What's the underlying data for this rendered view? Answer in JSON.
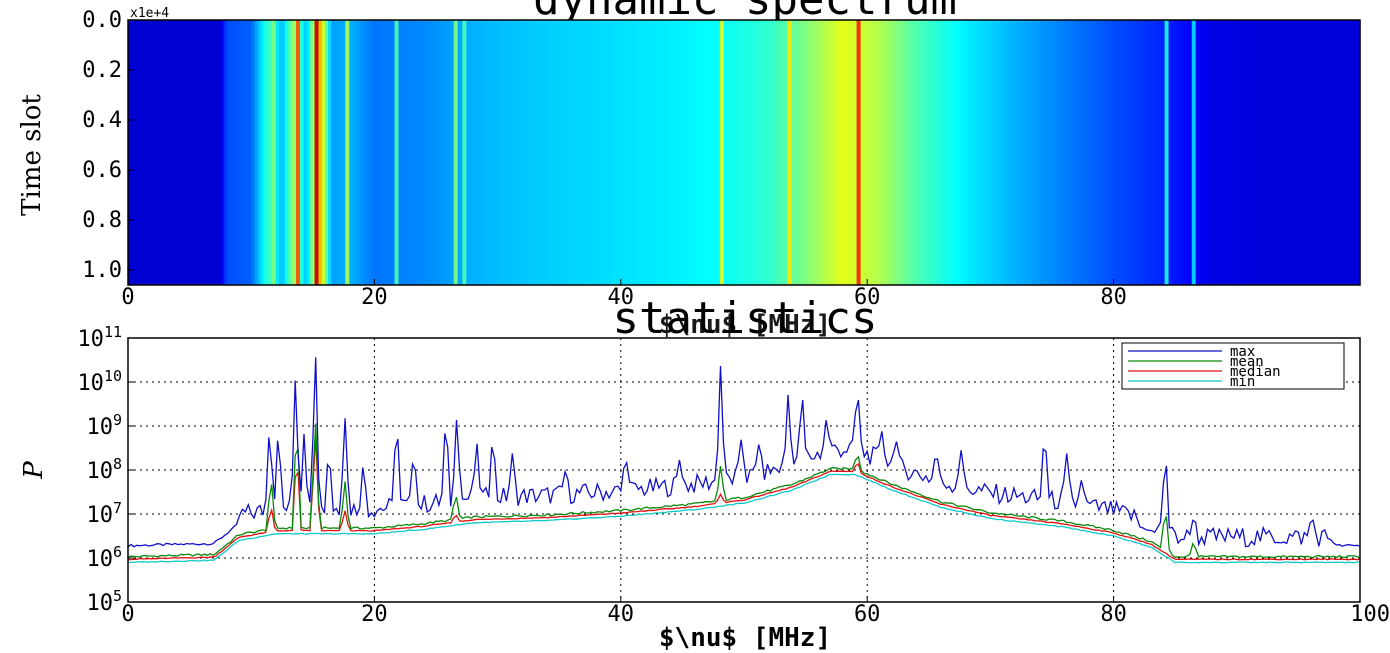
{
  "chart_data": [
    {
      "type": "heatmap",
      "title": "dynamic spectrum",
      "xlabel": "$\\nu$ [MHz]",
      "ylabel": "Time slot",
      "y_scale_note": "x1e+4",
      "xlim": [
        0,
        100
      ],
      "ylim": [
        1.06,
        0.0
      ],
      "x_ticks": [
        "0",
        "20",
        "40",
        "60",
        "80"
      ],
      "y_ticks": [
        "0.0",
        "0.2",
        "0.4",
        "0.6",
        "0.8",
        "1.0"
      ],
      "colormap": "jet",
      "column_profile": {
        "x": [
          0,
          7.5,
          8,
          10,
          11.5,
          12.5,
          13.5,
          14.5,
          15.5,
          16.5,
          18,
          20,
          24,
          28,
          32,
          38,
          44,
          48,
          52,
          55,
          58,
          61,
          64,
          68,
          72,
          76,
          80,
          84,
          88,
          92,
          96,
          100
        ],
        "level": [
          0.08,
          0.08,
          0.2,
          0.22,
          0.45,
          0.3,
          0.55,
          0.3,
          0.75,
          0.28,
          0.3,
          0.24,
          0.26,
          0.3,
          0.32,
          0.34,
          0.36,
          0.38,
          0.42,
          0.5,
          0.6,
          0.55,
          0.45,
          0.36,
          0.3,
          0.25,
          0.2,
          0.16,
          0.1,
          0.09,
          0.09,
          0.09
        ]
      },
      "bright_channels": [
        {
          "x": 11.8,
          "level": 0.5
        },
        {
          "x": 13.8,
          "level": 0.8
        },
        {
          "x": 15.3,
          "level": 0.95
        },
        {
          "x": 17.8,
          "level": 0.55
        },
        {
          "x": 21.8,
          "level": 0.45
        },
        {
          "x": 26.6,
          "level": 0.5
        },
        {
          "x": 27.3,
          "level": 0.45
        },
        {
          "x": 48.2,
          "level": 0.6
        },
        {
          "x": 53.7,
          "level": 0.65
        },
        {
          "x": 59.3,
          "level": 0.85
        },
        {
          "x": 84.3,
          "level": 0.4
        },
        {
          "x": 86.5,
          "level": 0.35
        }
      ]
    },
    {
      "type": "line",
      "title": "statistics",
      "xlabel": "$\\nu$ [MHz]",
      "ylabel": "P",
      "xlim": [
        0,
        100
      ],
      "ylim": [
        100000,
        100000000000
      ],
      "y_scale": "log",
      "grid": true,
      "legend_position": "top-right",
      "x_ticks": [
        "0",
        "20",
        "40",
        "60",
        "80",
        "100"
      ],
      "y_ticks": [
        {
          "base": "10",
          "exp": "5"
        },
        {
          "base": "10",
          "exp": "6"
        },
        {
          "base": "10",
          "exp": "7"
        },
        {
          "base": "10",
          "exp": "8"
        },
        {
          "base": "10",
          "exp": "9"
        },
        {
          "base": "10",
          "exp": "10"
        },
        {
          "base": "10",
          "exp": "11"
        }
      ],
      "baseline": {
        "x": [
          0,
          7,
          9,
          12,
          16,
          20,
          24,
          28,
          34,
          40,
          46,
          50,
          54,
          57,
          59,
          62,
          66,
          70,
          76,
          80,
          83,
          85,
          88,
          100
        ],
        "log10": [
          5.95,
          6.0,
          6.45,
          6.6,
          6.6,
          6.6,
          6.7,
          6.85,
          6.9,
          7.0,
          7.15,
          7.3,
          7.6,
          7.95,
          7.95,
          7.6,
          7.2,
          6.95,
          6.75,
          6.55,
          6.3,
          5.95,
          5.95,
          5.95
        ]
      },
      "series": [
        {
          "name": "max",
          "color": "#1010c8",
          "offset": 0.3,
          "spikes": [
            [
              9.5,
              6.7
            ],
            [
              10.5,
              6.9
            ],
            [
              11.5,
              9.2
            ],
            [
              12.2,
              9.0
            ],
            [
              13.6,
              10.3
            ],
            [
              14.3,
              8.9
            ],
            [
              15.2,
              11.0
            ],
            [
              16.3,
              8.6
            ],
            [
              17.6,
              9.3
            ],
            [
              19.1,
              8.2
            ],
            [
              21.8,
              9.35
            ],
            [
              23.2,
              8.6
            ],
            [
              25.8,
              9.3
            ],
            [
              26.7,
              9.35
            ],
            [
              28.3,
              8.7
            ],
            [
              29.6,
              8.9
            ],
            [
              31.2,
              8.4
            ],
            [
              35.5,
              8.0
            ],
            [
              40.4,
              8.4
            ],
            [
              44.8,
              8.3
            ],
            [
              48.1,
              10.4
            ],
            [
              49.8,
              8.8
            ],
            [
              51.2,
              8.6
            ],
            [
              53.6,
              9.85
            ],
            [
              54.7,
              9.85
            ],
            [
              56.7,
              9.2
            ],
            [
              59.2,
              9.95
            ],
            [
              61.2,
              8.9
            ],
            [
              62.3,
              8.8
            ],
            [
              65.6,
              8.5
            ],
            [
              67.6,
              8.5
            ],
            [
              74.4,
              9.05
            ],
            [
              76.2,
              8.4
            ],
            [
              77.4,
              7.8
            ],
            [
              84.2,
              8.6
            ],
            [
              86.5,
              7.0
            ],
            [
              89.5,
              6.5
            ],
            [
              96.1,
              7.0
            ]
          ]
        },
        {
          "name": "mean",
          "color": "#0a8a0a",
          "offset": 0.08,
          "spikes": [
            [
              11.6,
              7.9
            ],
            [
              13.7,
              9.3
            ],
            [
              15.2,
              9.35
            ],
            [
              17.6,
              7.8
            ],
            [
              26.6,
              7.5
            ],
            [
              48.1,
              8.1
            ],
            [
              59.2,
              8.4
            ],
            [
              84.2,
              7.2
            ],
            [
              86.5,
              6.4
            ]
          ]
        },
        {
          "name": "median",
          "color": "#e01010",
          "offset": 0.02,
          "spikes": [
            [
              11.6,
              7.2
            ],
            [
              13.7,
              8.55
            ],
            [
              15.2,
              9.0
            ],
            [
              17.6,
              7.1
            ],
            [
              26.6,
              7.0
            ],
            [
              48.1,
              7.45
            ],
            [
              59.2,
              8.2
            ]
          ]
        },
        {
          "name": "min",
          "color": "#10c8c8",
          "offset": -0.05,
          "spikes": []
        }
      ]
    }
  ]
}
